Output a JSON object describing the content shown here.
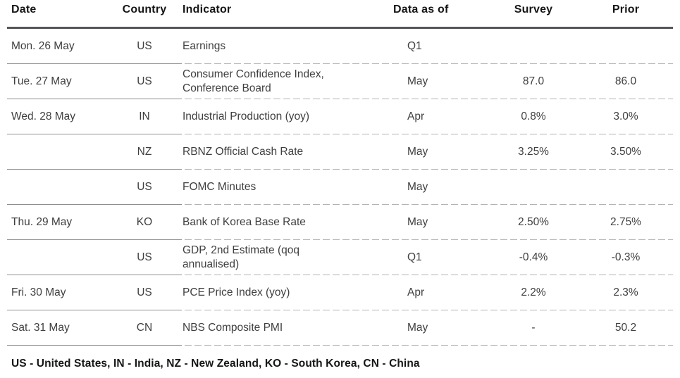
{
  "table": {
    "columns": [
      "Date",
      "Country",
      "Indicator",
      "Data as of",
      "Survey",
      "Prior"
    ],
    "rows": [
      {
        "date": "Mon. 26 May",
        "country": "US",
        "indicator": "Earnings",
        "data_as_of": "Q1",
        "survey": "",
        "prior": ""
      },
      {
        "date": "Tue. 27 May",
        "country": "US",
        "indicator": "Consumer Confidence Index, Conference Board",
        "data_as_of": "May",
        "survey": "87.0",
        "prior": "86.0"
      },
      {
        "date": "Wed. 28 May",
        "country": "IN",
        "indicator": "Industrial Production (yoy)",
        "data_as_of": "Apr",
        "survey": "0.8%",
        "prior": "3.0%"
      },
      {
        "date": "",
        "country": "NZ",
        "indicator": "RBNZ Official Cash Rate",
        "data_as_of": "May",
        "survey": "3.25%",
        "prior": "3.50%"
      },
      {
        "date": "",
        "country": "US",
        "indicator": "FOMC Minutes",
        "data_as_of": "May",
        "survey": "",
        "prior": ""
      },
      {
        "date": "Thu. 29 May",
        "country": "KO",
        "indicator": "Bank of Korea Base Rate",
        "data_as_of": "May",
        "survey": "2.50%",
        "prior": "2.75%"
      },
      {
        "date": "",
        "country": "US",
        "indicator": "GDP, 2nd Estimate (qoq annualised)",
        "data_as_of": "Q1",
        "survey": "-0.4%",
        "prior": "-0.3%"
      },
      {
        "date": "Fri. 30 May",
        "country": "US",
        "indicator": "PCE Price Index (yoy)",
        "data_as_of": "Apr",
        "survey": "2.2%",
        "prior": "2.3%"
      },
      {
        "date": "Sat. 31 May",
        "country": "CN",
        "indicator": "NBS Composite PMI",
        "data_as_of": "May",
        "survey": "-",
        "prior": "50.2"
      }
    ],
    "footnote": "US - United States, IN - India, NZ - New Zealand, KO - South Korea, CN - China",
    "colors": {
      "header_rule": "#55555a",
      "row_rule_solid": "#8f8f8f",
      "row_rule_dashed": "#b3b3b3",
      "body_text": "#3f3f3f",
      "heading_text": "#161616"
    }
  }
}
